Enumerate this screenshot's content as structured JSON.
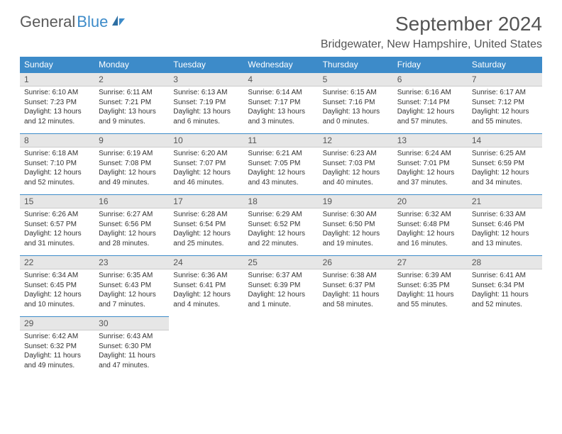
{
  "logo": {
    "text_gray": "General",
    "text_blue": "Blue"
  },
  "title": "September 2024",
  "location": "Bridgewater, New Hampshire, United States",
  "dayHeaders": [
    "Sunday",
    "Monday",
    "Tuesday",
    "Wednesday",
    "Thursday",
    "Friday",
    "Saturday"
  ],
  "colors": {
    "accent": "#3d8bc9",
    "header_text": "#ffffff",
    "daybar_bg": "#e6e6e6",
    "text": "#333333"
  },
  "weeks": [
    [
      {
        "day": "1",
        "sunrise": "Sunrise: 6:10 AM",
        "sunset": "Sunset: 7:23 PM",
        "dl1": "Daylight: 13 hours",
        "dl2": "and 12 minutes."
      },
      {
        "day": "2",
        "sunrise": "Sunrise: 6:11 AM",
        "sunset": "Sunset: 7:21 PM",
        "dl1": "Daylight: 13 hours",
        "dl2": "and 9 minutes."
      },
      {
        "day": "3",
        "sunrise": "Sunrise: 6:13 AM",
        "sunset": "Sunset: 7:19 PM",
        "dl1": "Daylight: 13 hours",
        "dl2": "and 6 minutes."
      },
      {
        "day": "4",
        "sunrise": "Sunrise: 6:14 AM",
        "sunset": "Sunset: 7:17 PM",
        "dl1": "Daylight: 13 hours",
        "dl2": "and 3 minutes."
      },
      {
        "day": "5",
        "sunrise": "Sunrise: 6:15 AM",
        "sunset": "Sunset: 7:16 PM",
        "dl1": "Daylight: 13 hours",
        "dl2": "and 0 minutes."
      },
      {
        "day": "6",
        "sunrise": "Sunrise: 6:16 AM",
        "sunset": "Sunset: 7:14 PM",
        "dl1": "Daylight: 12 hours",
        "dl2": "and 57 minutes."
      },
      {
        "day": "7",
        "sunrise": "Sunrise: 6:17 AM",
        "sunset": "Sunset: 7:12 PM",
        "dl1": "Daylight: 12 hours",
        "dl2": "and 55 minutes."
      }
    ],
    [
      {
        "day": "8",
        "sunrise": "Sunrise: 6:18 AM",
        "sunset": "Sunset: 7:10 PM",
        "dl1": "Daylight: 12 hours",
        "dl2": "and 52 minutes."
      },
      {
        "day": "9",
        "sunrise": "Sunrise: 6:19 AM",
        "sunset": "Sunset: 7:08 PM",
        "dl1": "Daylight: 12 hours",
        "dl2": "and 49 minutes."
      },
      {
        "day": "10",
        "sunrise": "Sunrise: 6:20 AM",
        "sunset": "Sunset: 7:07 PM",
        "dl1": "Daylight: 12 hours",
        "dl2": "and 46 minutes."
      },
      {
        "day": "11",
        "sunrise": "Sunrise: 6:21 AM",
        "sunset": "Sunset: 7:05 PM",
        "dl1": "Daylight: 12 hours",
        "dl2": "and 43 minutes."
      },
      {
        "day": "12",
        "sunrise": "Sunrise: 6:23 AM",
        "sunset": "Sunset: 7:03 PM",
        "dl1": "Daylight: 12 hours",
        "dl2": "and 40 minutes."
      },
      {
        "day": "13",
        "sunrise": "Sunrise: 6:24 AM",
        "sunset": "Sunset: 7:01 PM",
        "dl1": "Daylight: 12 hours",
        "dl2": "and 37 minutes."
      },
      {
        "day": "14",
        "sunrise": "Sunrise: 6:25 AM",
        "sunset": "Sunset: 6:59 PM",
        "dl1": "Daylight: 12 hours",
        "dl2": "and 34 minutes."
      }
    ],
    [
      {
        "day": "15",
        "sunrise": "Sunrise: 6:26 AM",
        "sunset": "Sunset: 6:57 PM",
        "dl1": "Daylight: 12 hours",
        "dl2": "and 31 minutes."
      },
      {
        "day": "16",
        "sunrise": "Sunrise: 6:27 AM",
        "sunset": "Sunset: 6:56 PM",
        "dl1": "Daylight: 12 hours",
        "dl2": "and 28 minutes."
      },
      {
        "day": "17",
        "sunrise": "Sunrise: 6:28 AM",
        "sunset": "Sunset: 6:54 PM",
        "dl1": "Daylight: 12 hours",
        "dl2": "and 25 minutes."
      },
      {
        "day": "18",
        "sunrise": "Sunrise: 6:29 AM",
        "sunset": "Sunset: 6:52 PM",
        "dl1": "Daylight: 12 hours",
        "dl2": "and 22 minutes."
      },
      {
        "day": "19",
        "sunrise": "Sunrise: 6:30 AM",
        "sunset": "Sunset: 6:50 PM",
        "dl1": "Daylight: 12 hours",
        "dl2": "and 19 minutes."
      },
      {
        "day": "20",
        "sunrise": "Sunrise: 6:32 AM",
        "sunset": "Sunset: 6:48 PM",
        "dl1": "Daylight: 12 hours",
        "dl2": "and 16 minutes."
      },
      {
        "day": "21",
        "sunrise": "Sunrise: 6:33 AM",
        "sunset": "Sunset: 6:46 PM",
        "dl1": "Daylight: 12 hours",
        "dl2": "and 13 minutes."
      }
    ],
    [
      {
        "day": "22",
        "sunrise": "Sunrise: 6:34 AM",
        "sunset": "Sunset: 6:45 PM",
        "dl1": "Daylight: 12 hours",
        "dl2": "and 10 minutes."
      },
      {
        "day": "23",
        "sunrise": "Sunrise: 6:35 AM",
        "sunset": "Sunset: 6:43 PM",
        "dl1": "Daylight: 12 hours",
        "dl2": "and 7 minutes."
      },
      {
        "day": "24",
        "sunrise": "Sunrise: 6:36 AM",
        "sunset": "Sunset: 6:41 PM",
        "dl1": "Daylight: 12 hours",
        "dl2": "and 4 minutes."
      },
      {
        "day": "25",
        "sunrise": "Sunrise: 6:37 AM",
        "sunset": "Sunset: 6:39 PM",
        "dl1": "Daylight: 12 hours",
        "dl2": "and 1 minute."
      },
      {
        "day": "26",
        "sunrise": "Sunrise: 6:38 AM",
        "sunset": "Sunset: 6:37 PM",
        "dl1": "Daylight: 11 hours",
        "dl2": "and 58 minutes."
      },
      {
        "day": "27",
        "sunrise": "Sunrise: 6:39 AM",
        "sunset": "Sunset: 6:35 PM",
        "dl1": "Daylight: 11 hours",
        "dl2": "and 55 minutes."
      },
      {
        "day": "28",
        "sunrise": "Sunrise: 6:41 AM",
        "sunset": "Sunset: 6:34 PM",
        "dl1": "Daylight: 11 hours",
        "dl2": "and 52 minutes."
      }
    ],
    [
      {
        "day": "29",
        "sunrise": "Sunrise: 6:42 AM",
        "sunset": "Sunset: 6:32 PM",
        "dl1": "Daylight: 11 hours",
        "dl2": "and 49 minutes."
      },
      {
        "day": "30",
        "sunrise": "Sunrise: 6:43 AM",
        "sunset": "Sunset: 6:30 PM",
        "dl1": "Daylight: 11 hours",
        "dl2": "and 47 minutes."
      },
      null,
      null,
      null,
      null,
      null
    ]
  ]
}
